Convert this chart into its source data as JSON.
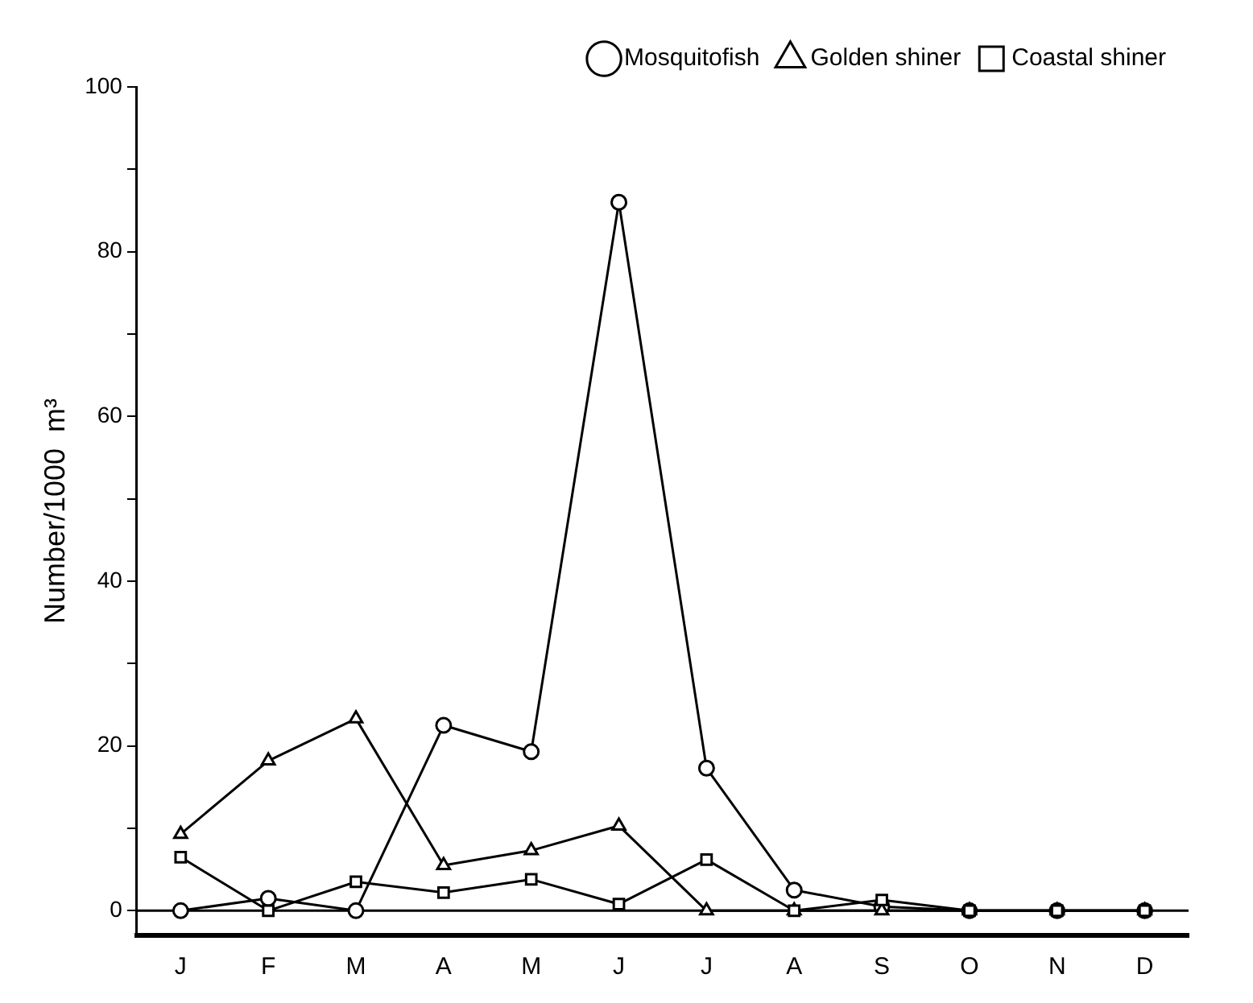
{
  "chart_data": {
    "type": "line",
    "ylabel": "Number/1000  m³",
    "categories": [
      "J",
      "F",
      "M",
      "A",
      "M",
      "J",
      "J",
      "A",
      "S",
      "O",
      "N",
      "D"
    ],
    "series": [
      {
        "name": "Mosquitofish",
        "color": "#000000",
        "marker": "circle",
        "values": [
          0,
          1.5,
          0,
          22.5,
          19.3,
          86,
          17.3,
          2.5,
          0.5,
          0,
          0,
          0
        ]
      },
      {
        "name": "Golden shiner",
        "color": "#000000",
        "marker": "triangle",
        "values": [
          9.3,
          18.2,
          23.3,
          5.5,
          7.3,
          10.3,
          0,
          0,
          0,
          0,
          0,
          0
        ]
      },
      {
        "name": "Coastal shiner",
        "color": "#000000",
        "marker": "square",
        "values": [
          6.5,
          0,
          3.5,
          2.2,
          3.8,
          0.8,
          6.2,
          0,
          1.3,
          0,
          0,
          0
        ]
      }
    ],
    "ylim": [
      -3,
      100
    ],
    "yticks": [
      0,
      {
        "value": 10,
        "label": null
      },
      20,
      {
        "value": 30,
        "label": null
      },
      40,
      {
        "value": 50,
        "label": null
      },
      60,
      {
        "value": 70,
        "label": null
      },
      80,
      {
        "value": 90,
        "label": null
      },
      100
    ],
    "ref_lines": [
      {
        "axis": "y",
        "value": 0,
        "color": "#000000"
      }
    ],
    "grid": false,
    "legend": "top right",
    "line_style": "solid"
  }
}
